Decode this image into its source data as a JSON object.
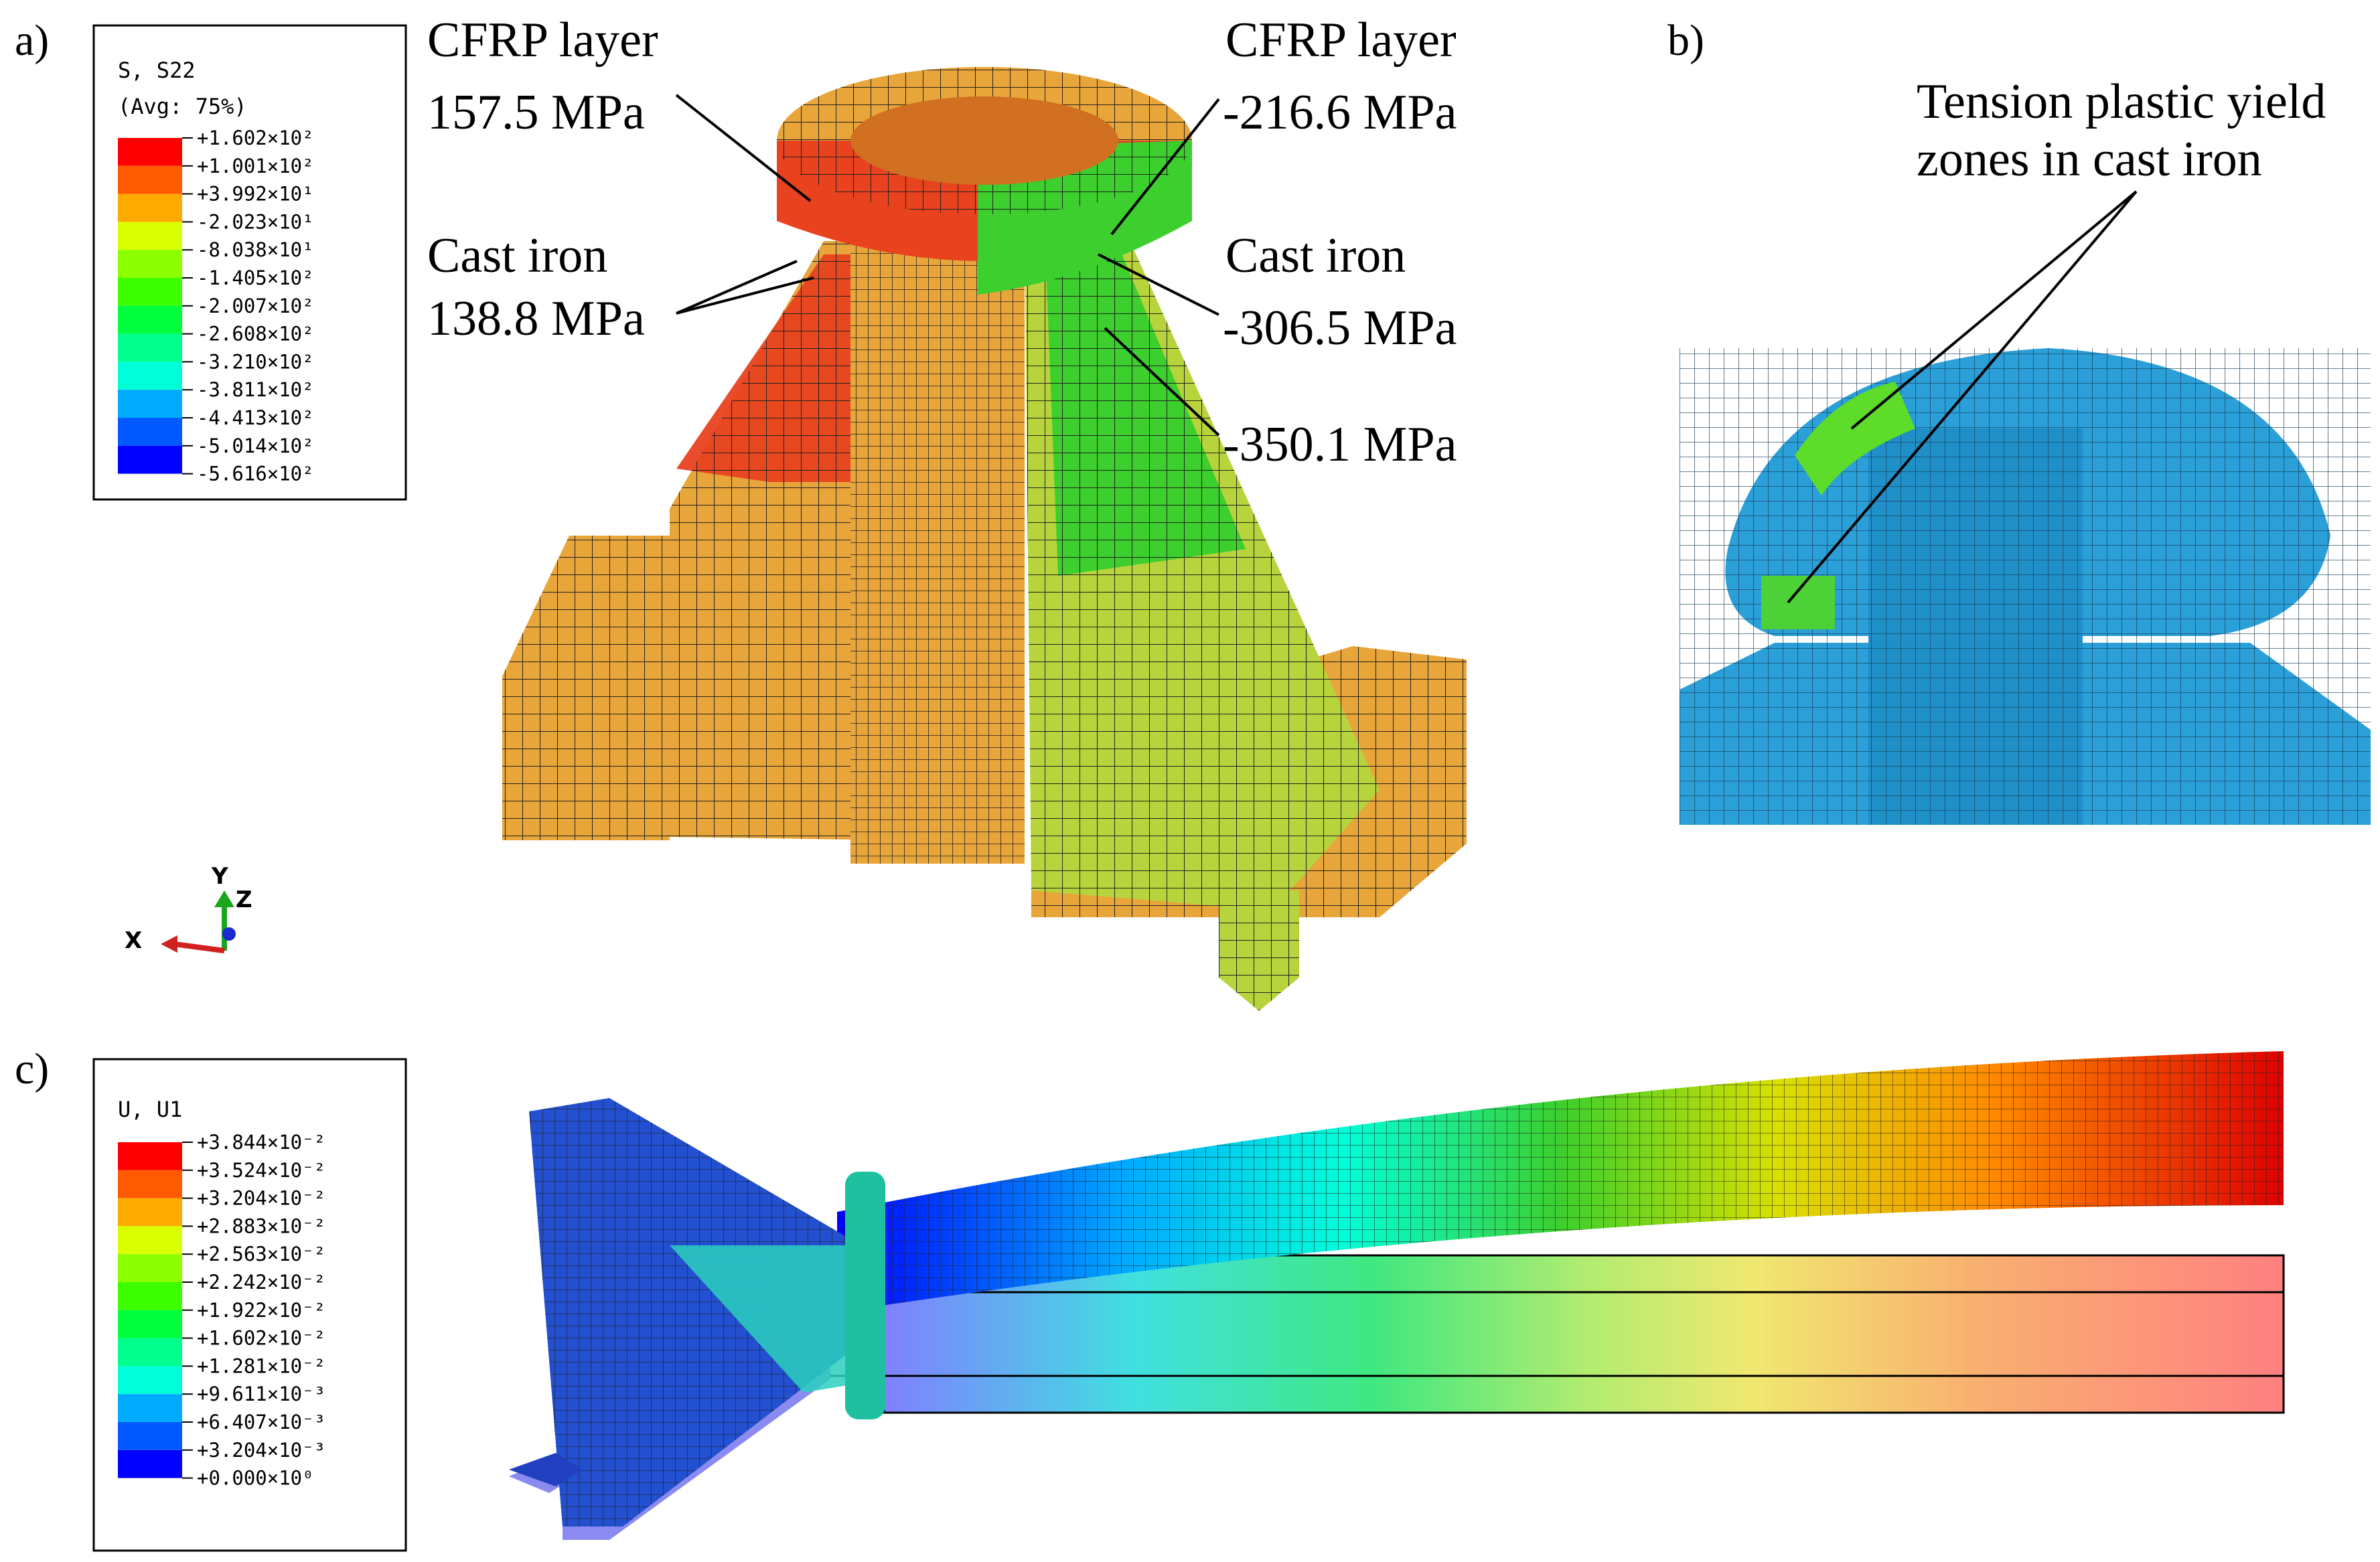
{
  "panels": {
    "a": {
      "label": "a)",
      "legend": {
        "title_line1": "S, S22",
        "title_line2": "(Avg: 75%)",
        "colors": [
          "#ff0000",
          "#ff5a00",
          "#ffaa00",
          "#d9ff00",
          "#8cff00",
          "#3cff00",
          "#00ff3c",
          "#00ff8c",
          "#00ffd9",
          "#00aaff",
          "#005aff",
          "#0000ff"
        ],
        "ticks": [
          "+1.602×10²",
          "+1.001×10²",
          "+3.992×10¹",
          "-2.023×10¹",
          "-8.038×10¹",
          "-1.405×10²",
          "-2.007×10²",
          "-2.608×10²",
          "-3.210×10²",
          "-3.811×10²",
          "-4.413×10²",
          "-5.014×10²",
          "-5.616×10²"
        ]
      },
      "annotations": {
        "cfrp_left_title": "CFRP layer",
        "cfrp_left_value": "157.5 MPa",
        "cast_left_title": "Cast iron",
        "cast_left_value": "138.8 MPa",
        "cfrp_right_title": "CFRP layer",
        "cfrp_right_value": "-216.6 MPa",
        "cast_right_title": "Cast iron",
        "cast_right_value": "-306.5 MPa",
        "extra_right_value": "-350.1 MPa"
      },
      "axes": {
        "y": "Y",
        "z": "Z",
        "x": "X"
      }
    },
    "b": {
      "label": "b)",
      "annotation_line1": "Tension plastic yield",
      "annotation_line2": "zones in cast iron"
    },
    "c": {
      "label": "c)",
      "legend": {
        "title": "U, U1",
        "colors": [
          "#ff0000",
          "#ff5a00",
          "#ffaa00",
          "#d9ff00",
          "#8cff00",
          "#3cff00",
          "#00ff3c",
          "#00ff8c",
          "#00ffd9",
          "#00aaff",
          "#005aff",
          "#0000ff"
        ],
        "ticks": [
          "+3.844×10⁻²",
          "+3.524×10⁻²",
          "+3.204×10⁻²",
          "+2.883×10⁻²",
          "+2.563×10⁻²",
          "+2.242×10⁻²",
          "+1.922×10⁻²",
          "+1.602×10⁻²",
          "+1.281×10⁻²",
          "+9.611×10⁻³",
          "+6.407×10⁻³",
          "+3.204×10⁻³",
          "+0.000×10⁰"
        ]
      }
    }
  },
  "colors": {
    "orange_fem": "#e8a53a",
    "red_fem": "#e8421f",
    "green_fem": "#3ccf2d",
    "yellow_fem": "#b8d43c",
    "blue_fem": "#2a9fd8",
    "mesh_line": "#2a2a2a"
  }
}
